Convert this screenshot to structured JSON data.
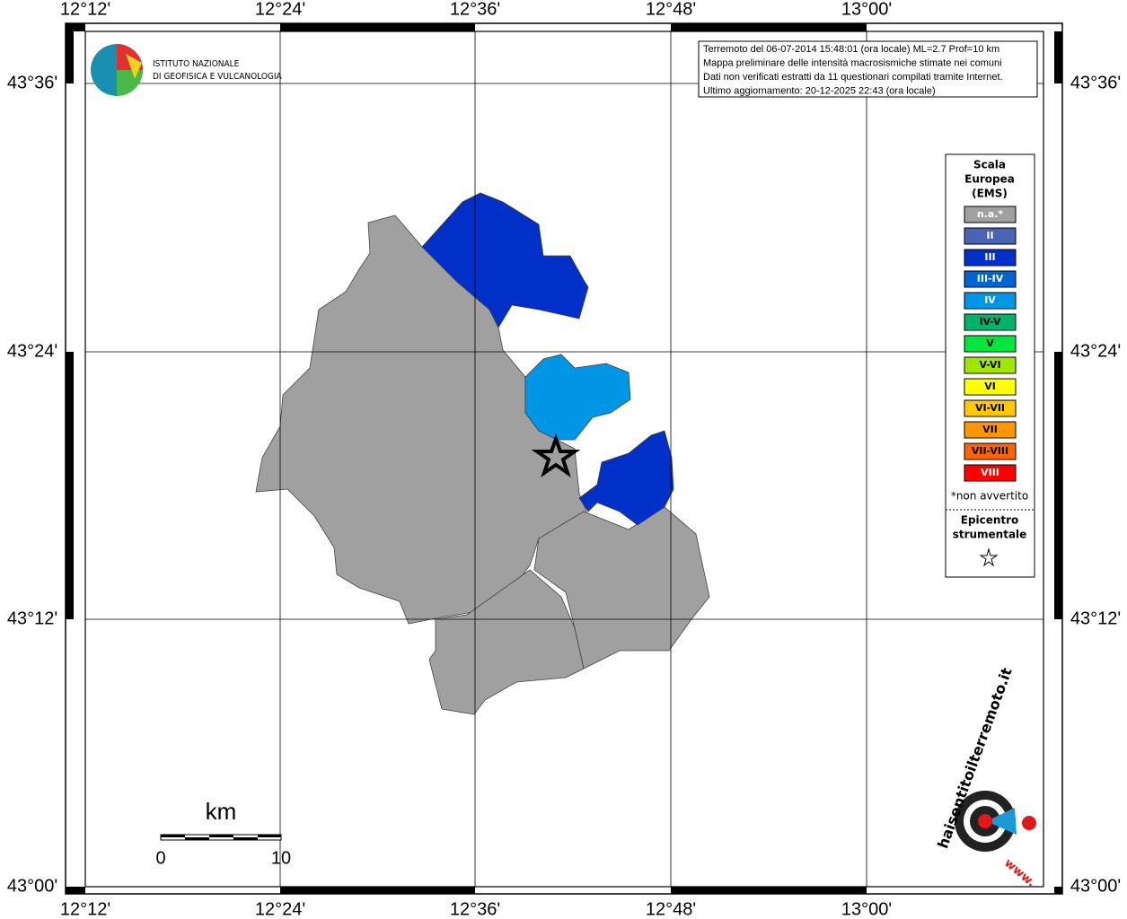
{
  "map": {
    "lon_labels": [
      "12°12'",
      "12°24'",
      "12°36'",
      "12°48'",
      "13°00'"
    ],
    "lat_labels": [
      "43°36'",
      "43°24'",
      "43°12'",
      "43°00'"
    ]
  },
  "info_box": {
    "lines": [
      "Terremoto del 06-07-2014 15:48:01 (ora locale) ML=2.7 Prof=10 km",
      "Mappa preliminare delle intensità macrosismiche stimate nei comuni",
      "Dati non verificati estratti da 11 questionari compilati tramite Internet.",
      "Ultimo aggiornamento: 20-12-2025 22:43 (ora locale)"
    ]
  },
  "logo": {
    "line1": "ISTITUTO NAZIONALE",
    "line2": "DI GEOFISICA E VULCANOLOGIA"
  },
  "legend": {
    "title_lines": [
      "Scala",
      "Europea",
      "(EMS)"
    ],
    "items": [
      {
        "label": "n.a.*",
        "color": "#a0a0a0",
        "text_color": "#ffffff"
      },
      {
        "label": "II",
        "color": "#4a64b4",
        "text_color": "#ffffff"
      },
      {
        "label": "III",
        "color": "#0030c8",
        "text_color": "#ffffff"
      },
      {
        "label": "III-IV",
        "color": "#0064d2",
        "text_color": "#ffffff"
      },
      {
        "label": "IV",
        "color": "#0096e6",
        "text_color": "#ffffff"
      },
      {
        "label": "IV-V",
        "color": "#00b46e",
        "text_color": "#000000"
      },
      {
        "label": "V",
        "color": "#00e63c",
        "text_color": "#000000"
      },
      {
        "label": "V-VI",
        "color": "#a0e600",
        "text_color": "#000000"
      },
      {
        "label": "VI",
        "color": "#ffff00",
        "text_color": "#000000"
      },
      {
        "label": "VI-VII",
        "color": "#ffc800",
        "text_color": "#000000"
      },
      {
        "label": "VII",
        "color": "#ff9600",
        "text_color": "#000000"
      },
      {
        "label": "VII-VIII",
        "color": "#ff6400",
        "text_color": "#000000"
      },
      {
        "label": "VIII",
        "color": "#ff0000",
        "text_color": "#ffffff"
      }
    ],
    "note": "*non avvertito",
    "epicenter_lines": [
      "Epicentro",
      "strumentale"
    ]
  },
  "scale_bar": {
    "unit": "km",
    "labels": [
      0,
      10
    ]
  },
  "site_logo": {
    "text": "haisentitoilterremoto.it",
    "url_text": "www."
  }
}
